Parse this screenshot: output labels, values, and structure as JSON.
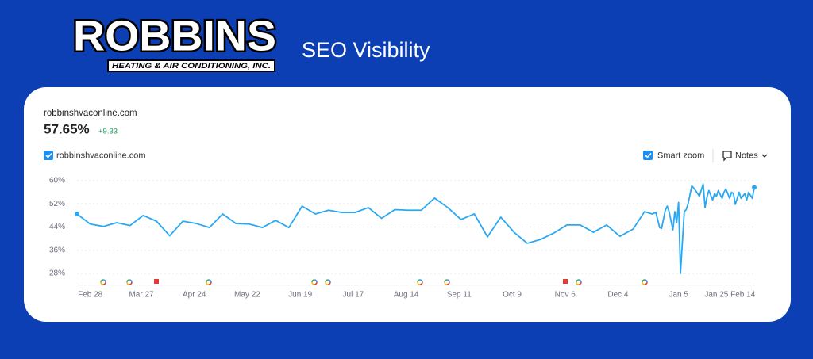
{
  "header": {
    "logo_name": "ROBBINS",
    "logo_tagline": "HEATING & AIR CONDITIONING, INC.",
    "title": "SEO Visibility"
  },
  "summary": {
    "domain": "robbinshvaconline.com",
    "value": "57.65%",
    "change": "+9.33"
  },
  "controls": {
    "smart_zoom": "Smart zoom",
    "notes": "Notes"
  },
  "chart_data": {
    "type": "line",
    "x": [
      0,
      7,
      14,
      21,
      28,
      35,
      42,
      49,
      56,
      63,
      70,
      77,
      84,
      91,
      98,
      105,
      112,
      119,
      126,
      133,
      140,
      147,
      154,
      161,
      168,
      175,
      182,
      189,
      196,
      203,
      210,
      217,
      224,
      231,
      238,
      245,
      252,
      259,
      266,
      273,
      280,
      287,
      294,
      300,
      304,
      306,
      308,
      309,
      311,
      312,
      313,
      315,
      316,
      317,
      318,
      319,
      321,
      322,
      323,
      325,
      327,
      329,
      331,
      332,
      333,
      334,
      336,
      337,
      338,
      339,
      341,
      342,
      343,
      345,
      346,
      347,
      348,
      350,
      351,
      353,
      354,
      355,
      357,
      358
    ],
    "series": [
      {
        "name": "robbinshvaconline.com",
        "color": "#2aa8f2",
        "values": [
          48.5,
          45,
          44.2,
          45.5,
          44.5,
          48,
          46,
          41,
          46,
          45.2,
          43.8,
          48.5,
          45.2,
          45,
          43.8,
          46.3,
          43.8,
          51.2,
          48.5,
          49.8,
          49,
          49,
          50.7,
          47,
          50,
          49.8,
          49.8,
          54,
          50.7,
          46.6,
          48.5,
          40.6,
          47.4,
          42.2,
          38.4,
          39.7,
          41.9,
          44.7,
          44.7,
          42.2,
          44.7,
          40.8,
          43.3,
          49.3,
          48.5,
          49,
          43.8,
          43.5,
          49.8,
          51.2,
          49.3,
          43,
          49.3,
          45.5,
          52.5,
          28,
          49.3,
          50,
          52,
          58.2,
          56.6,
          54.6,
          58.8,
          50.7,
          54.3,
          56.6,
          53.3,
          55.5,
          54.6,
          56.6,
          53.9,
          56,
          57.1,
          53.9,
          56,
          55.5,
          51.8,
          56,
          53.9,
          55.5,
          53.3,
          56,
          53.9,
          57.65
        ]
      }
    ],
    "xlim": [
      0,
      358
    ],
    "xticks": [
      {
        "value": 7,
        "label": "Feb 28"
      },
      {
        "value": 34,
        "label": "Mar 27"
      },
      {
        "value": 62,
        "label": "Apr 24"
      },
      {
        "value": 90,
        "label": "May 22"
      },
      {
        "value": 118,
        "label": "Jun 19"
      },
      {
        "value": 146,
        "label": "Jul 17"
      },
      {
        "value": 174,
        "label": "Aug 14"
      },
      {
        "value": 202,
        "label": "Sep 11"
      },
      {
        "value": 230,
        "label": "Oct 9"
      },
      {
        "value": 258,
        "label": "Nov 6"
      },
      {
        "value": 286,
        "label": "Dec 4"
      },
      {
        "value": 318,
        "label": "Jan 5"
      },
      {
        "value": 338,
        "label": "Jan 25"
      },
      {
        "value": 352,
        "label": "Feb 14"
      }
    ],
    "ylim": [
      24,
      62
    ],
    "yticks": [
      {
        "value": 28,
        "label": "28%"
      },
      {
        "value": 36,
        "label": "36%"
      },
      {
        "value": 44,
        "label": "44%"
      },
      {
        "value": 52,
        "label": "52%"
      },
      {
        "value": 60,
        "label": "60%"
      }
    ],
    "grid": true
  }
}
